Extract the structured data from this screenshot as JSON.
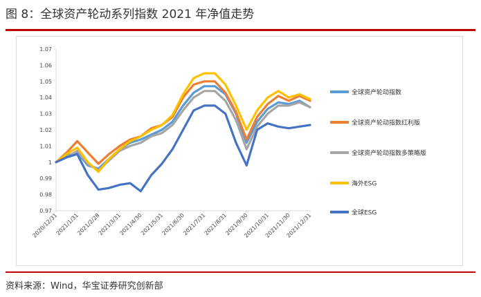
{
  "figure": {
    "title": "图 8：全球资产轮动系列指数 2021 年净值走势",
    "source": "资料来源：Wind，华宝证券研究创新部"
  },
  "colors": {
    "accent_rule": "#c00000",
    "axis": "#d9d9d9"
  },
  "chart_data": {
    "type": "line",
    "xlabel": "",
    "ylabel": "",
    "ylim": [
      0.97,
      1.07
    ],
    "yticks": [
      "0.97",
      "0.98",
      "0.99",
      "1",
      "1.01",
      "1.02",
      "1.03",
      "1.04",
      "1.05",
      "1.06",
      "1.07"
    ],
    "grid": false,
    "legend_position": "right",
    "x": [
      "2020/12/31",
      "2021/1/15",
      "2021/1/31",
      "2021/2/15",
      "2021/2/28",
      "2021/3/15",
      "2021/3/31",
      "2021/4/15",
      "2021/4/30",
      "2021/5/15",
      "2021/5/31",
      "2021/6/15",
      "2021/6/30",
      "2021/7/15",
      "2021/7/31",
      "2021/8/15",
      "2021/8/31",
      "2021/9/15",
      "2021/9/30",
      "2021/10/15",
      "2021/10/31",
      "2021/11/15",
      "2021/11/30",
      "2021/12/15",
      "2021/12/31"
    ],
    "x_tick_labels": [
      "2020/12/31",
      "2021/1/31",
      "2021/2/28",
      "2021/3/31",
      "2021/4/30",
      "2021/5/31",
      "2021/6/30",
      "2021/7/31",
      "2021/8/31",
      "2021/9/30",
      "2021/10/31",
      "2021/11/30",
      "2021/12/31"
    ],
    "series": [
      {
        "name": "全球资产轮动指数",
        "color": "#5b9bd5",
        "values": [
          1.0,
          1.004,
          1.006,
          0.998,
          0.996,
          1.002,
          1.008,
          1.012,
          1.014,
          1.017,
          1.02,
          1.025,
          1.035,
          1.043,
          1.047,
          1.047,
          1.042,
          1.03,
          1.012,
          1.025,
          1.033,
          1.037,
          1.036,
          1.038,
          1.034
        ]
      },
      {
        "name": "全球资产轮动指数红利版",
        "color": "#ed7d31",
        "values": [
          1.0,
          1.006,
          1.013,
          1.006,
          0.999,
          1.005,
          1.01,
          1.014,
          1.016,
          1.021,
          1.023,
          1.028,
          1.04,
          1.048,
          1.05,
          1.05,
          1.043,
          1.031,
          1.014,
          1.028,
          1.036,
          1.041,
          1.038,
          1.041,
          1.038
        ]
      },
      {
        "name": "全球资产轮动指数多策略版",
        "color": "#a5a5a5",
        "values": [
          1.0,
          1.003,
          1.007,
          0.999,
          0.995,
          1.001,
          1.007,
          1.01,
          1.012,
          1.016,
          1.018,
          1.023,
          1.032,
          1.04,
          1.044,
          1.044,
          1.038,
          1.026,
          1.008,
          1.022,
          1.03,
          1.035,
          1.035,
          1.037,
          1.034
        ]
      },
      {
        "name": "海外ESG",
        "color": "#ffc000",
        "values": [
          1.0,
          1.005,
          1.009,
          1.0,
          0.994,
          1.002,
          1.008,
          1.013,
          1.016,
          1.02,
          1.023,
          1.029,
          1.042,
          1.052,
          1.055,
          1.055,
          1.048,
          1.035,
          1.02,
          1.032,
          1.04,
          1.044,
          1.04,
          1.042,
          1.039
        ]
      },
      {
        "name": "全球ESG",
        "color": "#4472c4",
        "values": [
          1.0,
          1.003,
          1.005,
          0.992,
          0.983,
          0.984,
          0.986,
          0.987,
          0.982,
          0.992,
          0.999,
          1.008,
          1.02,
          1.032,
          1.035,
          1.035,
          1.03,
          1.012,
          0.998,
          1.02,
          1.024,
          1.022,
          1.021,
          1.022,
          1.023
        ]
      }
    ]
  }
}
